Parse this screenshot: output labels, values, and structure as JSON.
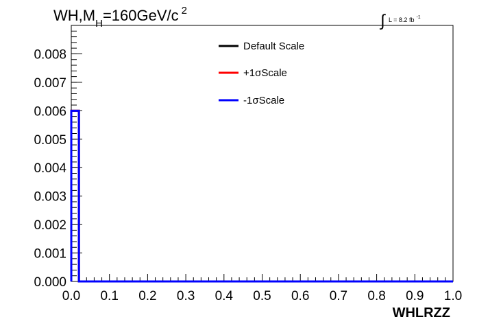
{
  "chart_data": {
    "type": "line",
    "title": {
      "prefix": "WH,M",
      "subscript": "H",
      "main": "=160GeV/c",
      "superscript": "2"
    },
    "lumi": {
      "integral_symbol": "∫",
      "text": "L = 8.2 fb",
      "superscript": "-1"
    },
    "xlabel": "WHLRZZ",
    "ylabel": "",
    "xlim": [
      0.0,
      1.0
    ],
    "ylim": [
      0.0,
      0.009
    ],
    "x_ticks": [
      0.0,
      0.1,
      0.2,
      0.3,
      0.4,
      0.5,
      0.6,
      0.7,
      0.8,
      0.9,
      1.0
    ],
    "x_tick_labels": [
      "0.0",
      "0.1",
      "0.2",
      "0.3",
      "0.4",
      "0.5",
      "0.6",
      "0.7",
      "0.8",
      "0.9",
      "1.0"
    ],
    "y_ticks": [
      0.0,
      0.001,
      0.002,
      0.003,
      0.004,
      0.005,
      0.006,
      0.007,
      0.008
    ],
    "y_tick_labels": [
      "0.000",
      "0.001",
      "0.002",
      "0.003",
      "0.004",
      "0.005",
      "0.006",
      "0.007",
      "0.008"
    ],
    "grid": false,
    "legend_position": "top-center",
    "series": [
      {
        "name": "Default Scale",
        "color": "#000000",
        "bins": [
          {
            "x0": 0.0,
            "x1": 0.02,
            "y": 0.006
          },
          {
            "x0": 0.02,
            "x1": 1.0,
            "y": 0.0
          }
        ]
      },
      {
        "name": "+1σScale",
        "color": "#ff0000",
        "bins": [
          {
            "x0": 0.0,
            "x1": 0.02,
            "y": 0.006
          },
          {
            "x0": 0.02,
            "x1": 1.0,
            "y": 0.0
          }
        ]
      },
      {
        "name": "-1σScale",
        "color": "#0000ff",
        "bins": [
          {
            "x0": 0.0,
            "x1": 0.02,
            "y": 0.006
          },
          {
            "x0": 0.02,
            "x1": 1.0,
            "y": 0.0
          }
        ]
      }
    ]
  }
}
